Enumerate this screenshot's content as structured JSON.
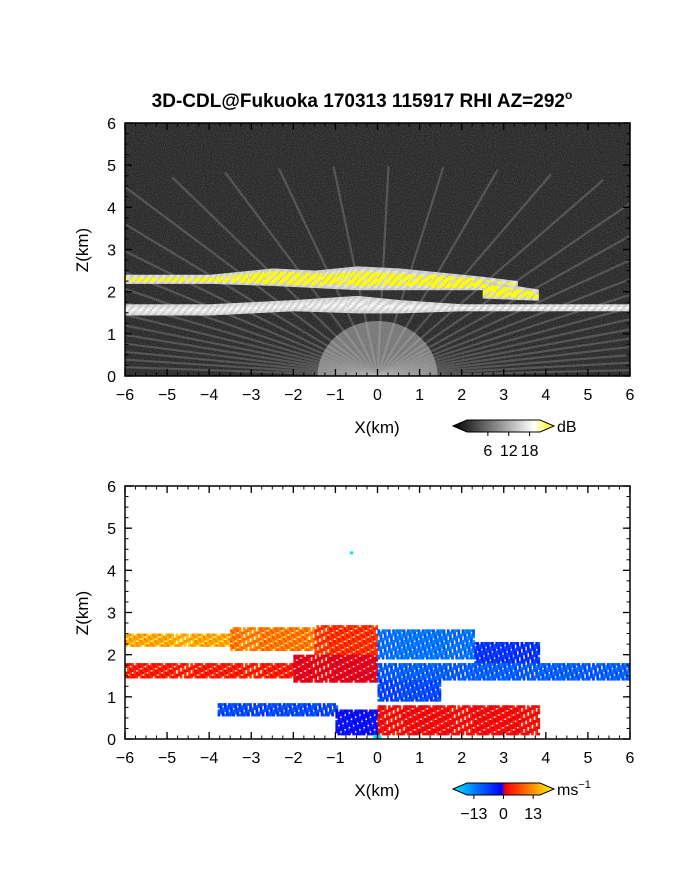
{
  "title": "3D-CDL@Fukuoka 170313 115917 RHI AZ=292",
  "title_sup": "o",
  "chart_data": [
    {
      "type": "heatmap",
      "panel": "snr",
      "xlabel": "X(km)",
      "ylabel": "Z(km)",
      "xlim": [
        -6,
        6
      ],
      "ylim": [
        0,
        6
      ],
      "xticks": [
        "−6",
        "−5",
        "−4",
        "−3",
        "−2",
        "−1",
        "0",
        "1",
        "2",
        "3",
        "4",
        "5",
        "6"
      ],
      "yticks": [
        "0",
        "1",
        "2",
        "3",
        "4",
        "5",
        "6"
      ],
      "background": "#262626",
      "layers": [
        {
          "name": "upper layer",
          "x": [
            -6,
            -4,
            -2.5,
            -1.5,
            -0.5,
            0.5,
            1.5,
            2.5,
            3.3
          ],
          "z_base": [
            2.2,
            2.2,
            2.15,
            2.1,
            2.05,
            2.05,
            2.05,
            2.05,
            2.1
          ],
          "z_top": [
            2.4,
            2.4,
            2.55,
            2.5,
            2.6,
            2.55,
            2.45,
            2.35,
            2.25
          ],
          "intensity": "high"
        },
        {
          "name": "right shelf",
          "x": [
            2.5,
            3.8
          ],
          "z_base": [
            1.85,
            1.8
          ],
          "z_top": [
            2.25,
            2.05
          ],
          "intensity": "high"
        },
        {
          "name": "lower layer",
          "x": [
            -6,
            -4,
            -2,
            -0.5,
            0.5,
            2,
            4,
            5.5,
            6
          ],
          "z_base": [
            1.45,
            1.45,
            1.55,
            1.5,
            1.5,
            1.55,
            1.55,
            1.55,
            1.55
          ],
          "z_top": [
            1.7,
            1.7,
            1.8,
            1.9,
            1.8,
            1.7,
            1.7,
            1.7,
            1.7
          ],
          "intensity": "medium"
        }
      ],
      "colorbar": {
        "label": "dB",
        "ticks": [
          "6",
          "12",
          "18"
        ],
        "range": [
          0,
          21
        ],
        "colors": [
          "#000000",
          "#ffffff",
          "#ffff00"
        ]
      }
    },
    {
      "type": "heatmap",
      "panel": "doppler",
      "xlabel": "X(km)",
      "ylabel": "Z(km)",
      "xlim": [
        -6,
        6
      ],
      "ylim": [
        0,
        6
      ],
      "xticks": [
        "−6",
        "−5",
        "−4",
        "−3",
        "−2",
        "−1",
        "0",
        "1",
        "2",
        "3",
        "4",
        "5",
        "6"
      ],
      "yticks": [
        "0",
        "1",
        "2",
        "3",
        "4",
        "5",
        "6"
      ],
      "background": "#ffffff",
      "regions": [
        {
          "x": [
            -6,
            -3.5
          ],
          "z": [
            2.2,
            2.45
          ],
          "velocity": 12
        },
        {
          "x": [
            -3.5,
            -1.5
          ],
          "z": [
            2.1,
            2.6
          ],
          "velocity": 10
        },
        {
          "x": [
            -1.5,
            0
          ],
          "z": [
            2.0,
            2.65
          ],
          "velocity": 7
        },
        {
          "x": [
            -6,
            -2
          ],
          "z": [
            1.45,
            1.8
          ],
          "velocity": 6
        },
        {
          "x": [
            -2,
            0
          ],
          "z": [
            1.35,
            2.0
          ],
          "velocity": 4
        },
        {
          "x": [
            -3.8,
            -1
          ],
          "z": [
            0.55,
            0.85
          ],
          "velocity": -9
        },
        {
          "x": [
            -1,
            0
          ],
          "z": [
            0.1,
            0.7
          ],
          "velocity": -6
        },
        {
          "x": [
            0,
            2.3
          ],
          "z": [
            1.9,
            2.55
          ],
          "velocity": -11
        },
        {
          "x": [
            2.3,
            3.8
          ],
          "z": [
            1.8,
            2.25
          ],
          "velocity": -8
        },
        {
          "x": [
            0,
            6
          ],
          "z": [
            1.4,
            1.8
          ],
          "velocity": -10
        },
        {
          "x": [
            0,
            1.5
          ],
          "z": [
            0.9,
            1.4
          ],
          "velocity": -9
        },
        {
          "x": [
            0,
            3.8
          ],
          "z": [
            0.1,
            0.8
          ],
          "velocity": 5
        }
      ],
      "colorbar": {
        "label": "ms",
        "label_sup": "−1",
        "ticks": [
          "−13",
          "0",
          "13"
        ],
        "range": [
          -16,
          16
        ],
        "colors": [
          "#00e5ff",
          "#0000ff",
          "#ff0000",
          "#ffff00"
        ]
      }
    }
  ]
}
